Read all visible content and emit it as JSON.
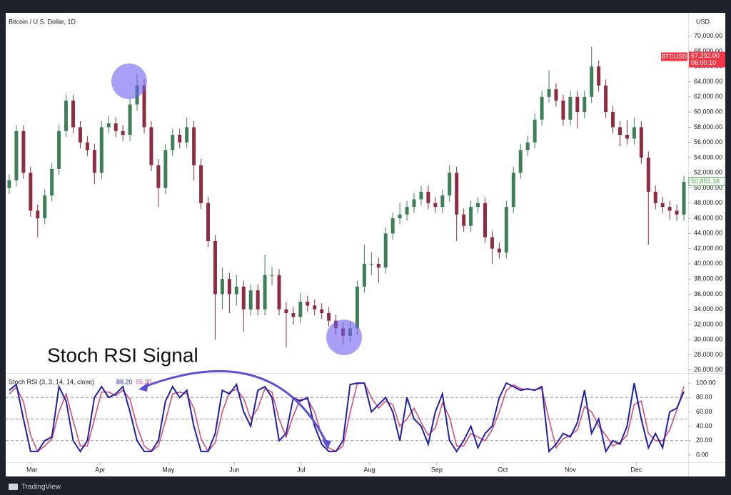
{
  "chart_data": {
    "type": "candlestick",
    "title": "Bitcoin / U.S. Dollar, 1D",
    "currency": "USD",
    "annotation": "Stoch RSI Signal",
    "up_color": "#3e7f57",
    "down_color": "#8f2d40",
    "open": [
      50000,
      51000,
      57500,
      52000,
      47000,
      46000,
      49000,
      52500,
      57500,
      61500,
      58000,
      56000,
      55000,
      52000,
      58000,
      58500,
      57500,
      57000,
      61000,
      63500,
      58000,
      53000,
      50000,
      55000,
      57000,
      56000,
      58000,
      53000,
      48000,
      43000,
      36000,
      38000,
      36000,
      37000,
      34000,
      36500,
      34000,
      38500,
      38500,
      34000,
      33500,
      33000,
      35000,
      34500,
      34000,
      33500,
      32500,
      31500,
      30500,
      31500,
      37000,
      40000,
      40000,
      39500,
      44000,
      46000,
      46500,
      47500,
      48500,
      49500,
      48000,
      47500,
      49000,
      52000,
      46500,
      45000,
      47500,
      48000,
      43500,
      42000,
      41500,
      47500,
      52000,
      55000,
      56000,
      59000,
      62000,
      63000,
      61500,
      59000,
      62000,
      60000,
      62000,
      66000,
      63500,
      60000,
      58000,
      57000,
      56500,
      58000,
      54000,
      49500,
      48000,
      47500,
      47000,
      46500
    ],
    "high": [
      51800,
      58300,
      58300,
      52800,
      47800,
      49800,
      53300,
      58300,
      62300,
      62300,
      58800,
      56800,
      55800,
      58800,
      59500,
      59300,
      58300,
      61800,
      65000,
      64300,
      58800,
      53800,
      55800,
      57800,
      57800,
      59300,
      58800,
      53800,
      48800,
      43800,
      39500,
      38800,
      38500,
      37800,
      37300,
      37300,
      41200,
      39500,
      39300,
      35000,
      34300,
      36200,
      35800,
      35300,
      34800,
      34300,
      33300,
      32300,
      32300,
      37800,
      42500,
      41500,
      40800,
      44800,
      46800,
      48000,
      48300,
      49300,
      50300,
      50300,
      48800,
      49800,
      53000,
      52800,
      47300,
      48300,
      48800,
      48800,
      44300,
      42800,
      48300,
      52800,
      55800,
      56800,
      59800,
      62800,
      65500,
      63800,
      62300,
      62800,
      62800,
      62800,
      68600,
      66800,
      64300,
      60800,
      58800,
      59000,
      59300,
      58800,
      54800,
      50300,
      48800,
      48300,
      47800,
      51600
    ],
    "low": [
      49200,
      50200,
      51200,
      46200,
      43500,
      45200,
      48200,
      51700,
      56700,
      57200,
      55200,
      54200,
      50500,
      51200,
      57200,
      56700,
      56200,
      56200,
      60200,
      57200,
      52200,
      47500,
      49200,
      54200,
      55200,
      55200,
      51000,
      47200,
      42200,
      30000,
      34000,
      33500,
      34500,
      31000,
      33200,
      33200,
      33200,
      37200,
      33200,
      29000,
      32000,
      32200,
      33700,
      33200,
      32700,
      31700,
      30700,
      29300,
      29700,
      30700,
      36200,
      38500,
      37500,
      38700,
      43200,
      45200,
      45700,
      46700,
      47700,
      47200,
      46700,
      46700,
      48200,
      43000,
      44200,
      44200,
      46700,
      42700,
      40000,
      40700,
      40700,
      46700,
      51200,
      54200,
      55200,
      58200,
      61200,
      60700,
      58200,
      58200,
      57800,
      59200,
      61200,
      62700,
      59200,
      57200,
      55500,
      55700,
      55700,
      53200,
      42500,
      47200,
      46700,
      45800,
      45700,
      45700
    ],
    "close": [
      51000,
      57500,
      52000,
      47000,
      46000,
      49000,
      52500,
      57500,
      61500,
      58000,
      56000,
      55000,
      52000,
      58000,
      58500,
      57500,
      57000,
      61000,
      63500,
      58000,
      53000,
      50000,
      55000,
      57000,
      56000,
      58000,
      53000,
      48000,
      43000,
      36000,
      38000,
      36000,
      37000,
      34000,
      36500,
      34000,
      38500,
      38500,
      34000,
      33500,
      33000,
      35000,
      34500,
      34000,
      33500,
      32500,
      31500,
      30500,
      31500,
      37000,
      40000,
      40000,
      39500,
      44000,
      46000,
      46500,
      47500,
      48500,
      49500,
      48000,
      47500,
      49000,
      52000,
      46500,
      45000,
      47500,
      48000,
      43500,
      42000,
      41500,
      47500,
      52000,
      55000,
      56000,
      59000,
      62000,
      63000,
      61500,
      59000,
      62000,
      60000,
      62000,
      66000,
      63500,
      60000,
      58000,
      57000,
      56500,
      58000,
      54000,
      49500,
      48000,
      47500,
      47000,
      46500,
      50800
    ],
    "xlim": [
      0,
      96
    ],
    "xticks": [
      {
        "value": 3.7,
        "label": "Mar"
      },
      {
        "value": 13.3,
        "label": "Apr"
      },
      {
        "value": 22.9,
        "label": "May"
      },
      {
        "value": 32.2,
        "label": "Jun"
      },
      {
        "value": 41.6,
        "label": "Jul"
      },
      {
        "value": 51.2,
        "label": "Aug"
      },
      {
        "value": 60.7,
        "label": "Sep"
      },
      {
        "value": 70,
        "label": "Oct"
      },
      {
        "value": 79.5,
        "label": "Nov"
      },
      {
        "value": 88.8,
        "label": "Dec"
      }
    ],
    "ylim": [
      25700,
      72700
    ],
    "yticks": [
      {
        "value": 26000,
        "label": "26,000.00"
      },
      {
        "value": 28000,
        "label": "28,000.00"
      },
      {
        "value": 30000,
        "label": "30,000.00"
      },
      {
        "value": 32000,
        "label": "32,000.00"
      },
      {
        "value": 34000,
        "label": "34,000.00"
      },
      {
        "value": 36000,
        "label": "36,000.00"
      },
      {
        "value": 38000,
        "label": "38,000.00"
      },
      {
        "value": 40000,
        "label": "40,000.00"
      },
      {
        "value": 42000,
        "label": "42,000.00"
      },
      {
        "value": 44000,
        "label": "44,000.00"
      },
      {
        "value": 46000,
        "label": "46,000.00"
      },
      {
        "value": 48000,
        "label": "48,000.00"
      },
      {
        "value": 50000,
        "label": "50,000.00"
      },
      {
        "value": 52000,
        "label": "52,000.00"
      },
      {
        "value": 54000,
        "label": "54,000.00"
      },
      {
        "value": 56000,
        "label": "56,000.00"
      },
      {
        "value": 58000,
        "label": "58,000.00"
      },
      {
        "value": 60000,
        "label": "60,000.00"
      },
      {
        "value": 62000,
        "label": "62,000.00"
      },
      {
        "value": 64000,
        "label": "64,000.00"
      },
      {
        "value": 66000,
        "label": "66,000.00"
      },
      {
        "value": 68000,
        "label": "68,000.00"
      },
      {
        "value": 70000,
        "label": "70,000.00"
      }
    ],
    "price_labels": [
      {
        "value": 67292,
        "label": "67,292.00",
        "tag": "BTCUSD",
        "countdown": "06:00:10",
        "color": "#f23645"
      },
      {
        "value": 50851.38,
        "label": "50,851.38",
        "color": "#4caf50"
      }
    ],
    "indicator": {
      "type": "line",
      "title": "Stoch RSI (3, 3, 14, 14, close)",
      "ylim": [
        -10,
        112
      ],
      "yticks": [
        {
          "value": 0,
          "label": "0.00"
        },
        {
          "value": 20,
          "label": "20.00"
        },
        {
          "value": 40,
          "label": "40.00"
        },
        {
          "value": 60,
          "label": "60.00"
        },
        {
          "value": 80,
          "label": "80.00"
        },
        {
          "value": 100,
          "label": "100.00"
        }
      ],
      "bands": [
        20,
        50,
        80
      ],
      "series": [
        {
          "color": "#1f1fa8",
          "last_label": "88.20",
          "values": [
            90,
            98,
            50,
            5,
            5,
            20,
            25,
            95,
            75,
            20,
            5,
            20,
            80,
            95,
            80,
            85,
            95,
            60,
            20,
            5,
            5,
            20,
            75,
            95,
            80,
            90,
            40,
            5,
            5,
            30,
            90,
            85,
            98,
            60,
            40,
            90,
            95,
            80,
            20,
            30,
            80,
            75,
            80,
            40,
            15,
            5,
            5,
            20,
            98,
            100,
            100,
            60,
            70,
            80,
            60,
            20,
            80,
            50,
            40,
            15,
            60,
            85,
            20,
            5,
            20,
            40,
            10,
            30,
            40,
            80,
            100,
            95,
            90,
            92,
            90,
            95,
            5,
            15,
            30,
            25,
            45,
            90,
            30,
            50,
            5,
            20,
            15,
            40,
            100,
            50,
            10,
            30,
            10,
            60,
            65,
            88.2
          ]
        },
        {
          "color": "#d4517a",
          "last_label": "95.30",
          "values": [
            85,
            94,
            74,
            27.5,
            5,
            12.5,
            22.5,
            60,
            85,
            47.5,
            12.5,
            12.5,
            50,
            87.5,
            87.5,
            82.5,
            90,
            77.5,
            40,
            12.5,
            5,
            12.5,
            47.5,
            85,
            87.5,
            85,
            65,
            22.5,
            5,
            17.5,
            60,
            87.5,
            91.5,
            79,
            50,
            65,
            92.5,
            87.5,
            50,
            25,
            55,
            77.5,
            77.5,
            60,
            27.5,
            10,
            5,
            12.5,
            59,
            99,
            100,
            80,
            65,
            75,
            70,
            40,
            50,
            65,
            45,
            27.5,
            37.5,
            72.5,
            52.5,
            12.5,
            12.5,
            30,
            25,
            20,
            35,
            60,
            90,
            97.5,
            92.5,
            91,
            91,
            92.5,
            50,
            10,
            22.5,
            27.5,
            35,
            67.5,
            60,
            40,
            27.5,
            12.5,
            17.5,
            27.5,
            70,
            75,
            30,
            20,
            20,
            35,
            62.5,
            95.3
          ]
        }
      ]
    }
  },
  "footer": {
    "brand": "TradingView"
  }
}
